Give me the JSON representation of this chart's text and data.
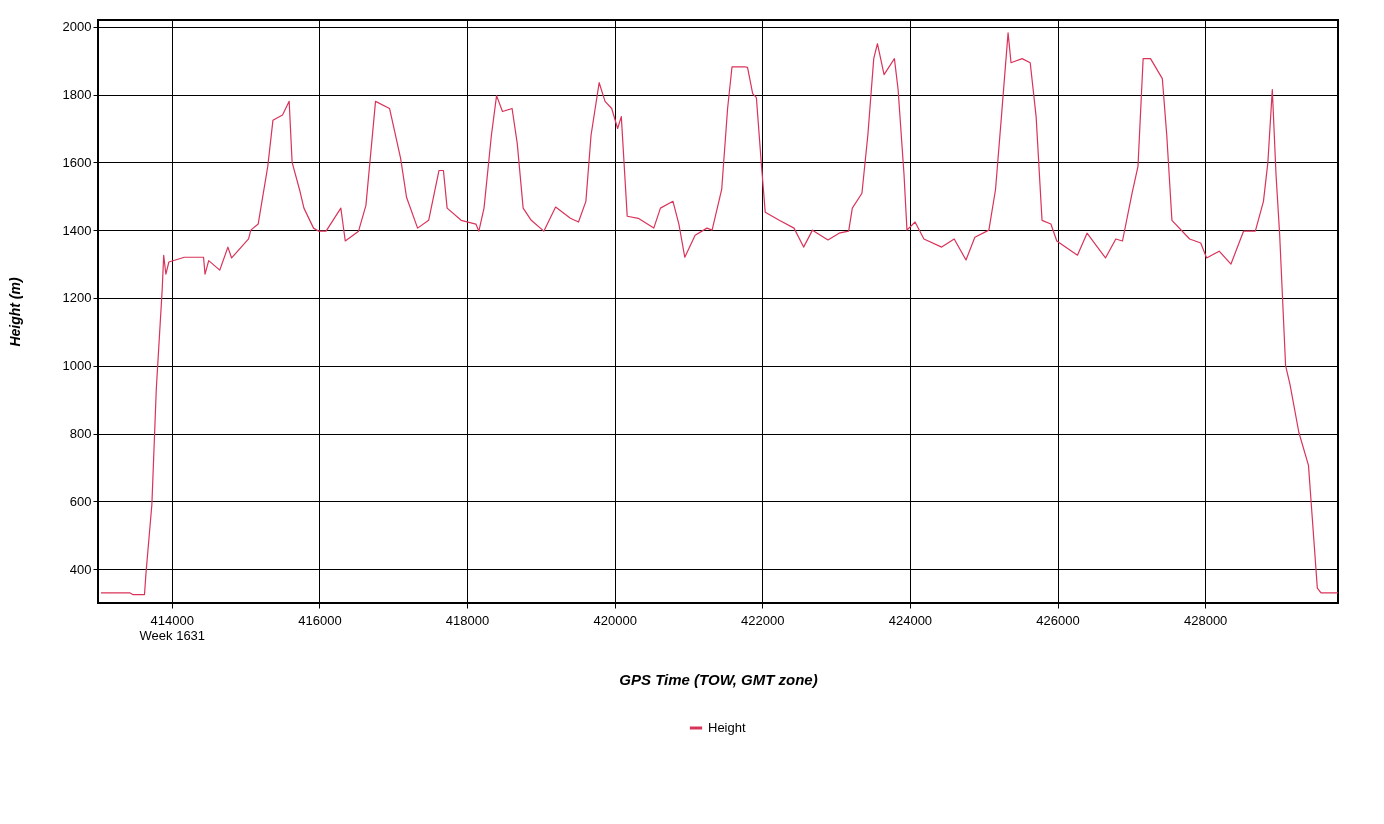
{
  "chart_data": {
    "type": "line",
    "xlabel": "GPS Time (TOW, GMT zone)",
    "ylabel": "Height (m)",
    "xlim": [
      413000,
      429800
    ],
    "ylim": [
      300,
      2020
    ],
    "xticks": [
      {
        "value": 414000,
        "label": "414000\nWeek 1631"
      },
      416000,
      418000,
      420000,
      422000,
      424000,
      426000,
      428000
    ],
    "yticks": [
      400,
      600,
      800,
      1000,
      1200,
      1400,
      1600,
      1800,
      2000
    ],
    "grid": true,
    "legend": "bottom",
    "line_style": "solid",
    "marker": "none",
    "series": [
      {
        "name": "Height",
        "color": "#d9335a",
        "x": [
          413040,
          413430,
          413470,
          413630,
          413650,
          413730,
          413790,
          413870,
          413890,
          413920,
          413960,
          414170,
          414430,
          414450,
          414500,
          414650,
          414760,
          414810,
          415040,
          415070,
          415170,
          415300,
          415370,
          415500,
          415590,
          415630,
          415730,
          415790,
          415920,
          415990,
          416090,
          416290,
          416350,
          416530,
          416630,
          416760,
          416950,
          417100,
          417180,
          417330,
          417480,
          417620,
          417680,
          417730,
          417920,
          418120,
          418160,
          418230,
          418330,
          418400,
          418480,
          418610,
          418680,
          418760,
          418870,
          419040,
          419200,
          419400,
          419510,
          419610,
          419680,
          419790,
          419870,
          419960,
          420040,
          420090,
          420170,
          420320,
          420530,
          420620,
          420790,
          420870,
          420950,
          421090,
          421250,
          421320,
          421450,
          421530,
          421590,
          421760,
          421800,
          421870,
          421920,
          421990,
          422040,
          422230,
          422430,
          422560,
          422680,
          422890,
          423040,
          423170,
          423220,
          423350,
          423430,
          423510,
          423560,
          423650,
          423790,
          423840,
          423920,
          423960,
          424070,
          424190,
          424430,
          424600,
          424760,
          424880,
          425070,
          425160,
          425240,
          425330,
          425370,
          425520,
          425630,
          425710,
          425790,
          425910,
          425990,
          426270,
          426400,
          426650,
          426790,
          426880,
          427010,
          427090,
          427160,
          427260,
          427420,
          427480,
          427550,
          427790,
          427940,
          428020,
          428190,
          428350,
          428520,
          428680,
          428790,
          428850,
          428910,
          428960,
          429010,
          429090,
          429150,
          429270,
          429400,
          429520,
          429570,
          429800
        ],
        "values": [
          330,
          330,
          325,
          325,
          388,
          591,
          932,
          1226,
          1326,
          1270,
          1306,
          1320,
          1320,
          1270,
          1310,
          1282,
          1350,
          1318,
          1374,
          1400,
          1418,
          1588,
          1724,
          1740,
          1780,
          1600,
          1520,
          1465,
          1406,
          1397,
          1397,
          1465,
          1368,
          1397,
          1473,
          1780,
          1759,
          1612,
          1497,
          1406,
          1429,
          1576,
          1576,
          1465,
          1429,
          1418,
          1397,
          1465,
          1680,
          1797,
          1750,
          1759,
          1656,
          1465,
          1429,
          1397,
          1468,
          1435,
          1424,
          1485,
          1680,
          1835,
          1780,
          1759,
          1700,
          1735,
          1441,
          1435,
          1406,
          1465,
          1485,
          1418,
          1320,
          1385,
          1406,
          1400,
          1520,
          1759,
          1882,
          1882,
          1880,
          1803,
          1791,
          1588,
          1453,
          1429,
          1406,
          1350,
          1400,
          1371,
          1391,
          1397,
          1465,
          1509,
          1680,
          1906,
          1950,
          1859,
          1906,
          1815,
          1565,
          1400,
          1424,
          1374,
          1350,
          1374,
          1312,
          1379,
          1400,
          1520,
          1735,
          1982,
          1894,
          1906,
          1894,
          1735,
          1429,
          1418,
          1368,
          1326,
          1391,
          1318,
          1374,
          1368,
          1509,
          1588,
          1906,
          1906,
          1847,
          1680,
          1429,
          1374,
          1362,
          1318,
          1338,
          1300,
          1397,
          1397,
          1485,
          1600,
          1815,
          1565,
          1385,
          1000,
          944,
          803,
          706,
          344,
          330,
          330
        ]
      }
    ]
  }
}
